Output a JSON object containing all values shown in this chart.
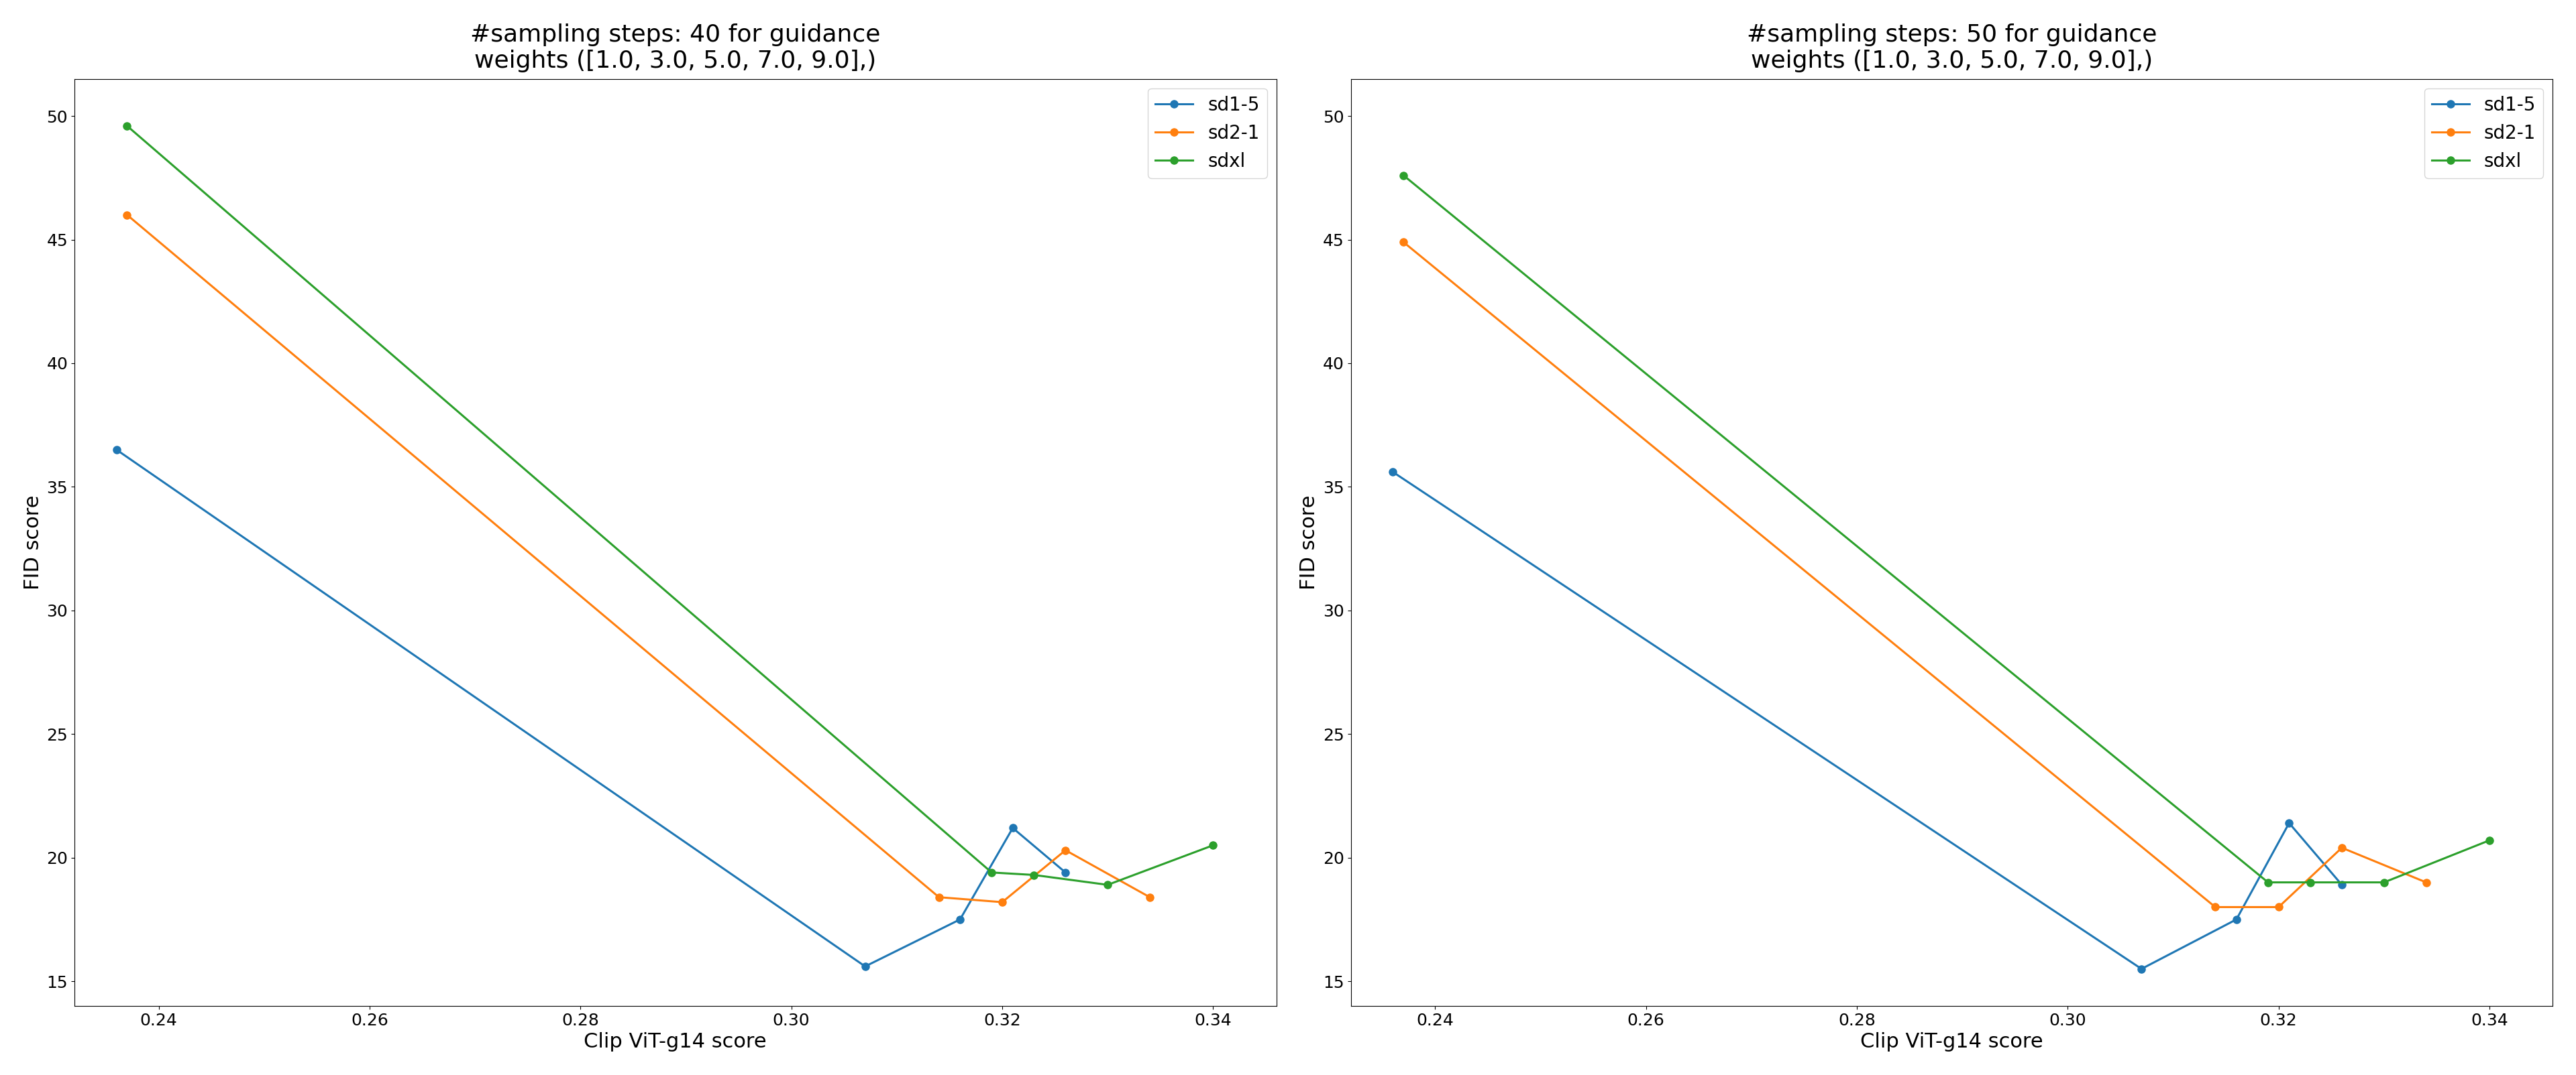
{
  "plots": [
    {
      "title": "#sampling steps: 40 for guidance\nweights ([1.0, 3.0, 5.0, 7.0, 9.0],)",
      "sd1_5": {
        "clip": [
          0.236,
          0.307,
          0.316,
          0.321,
          0.326
        ],
        "fid": [
          36.5,
          15.6,
          17.5,
          21.2,
          19.4
        ]
      },
      "sd2_1": {
        "clip": [
          0.237,
          0.314,
          0.32,
          0.326,
          0.334
        ],
        "fid": [
          46.0,
          18.4,
          18.2,
          20.3,
          18.4
        ]
      },
      "sdxl": {
        "clip": [
          0.237,
          0.319,
          0.323,
          0.33,
          0.34
        ],
        "fid": [
          49.6,
          19.4,
          19.3,
          18.9,
          20.5
        ]
      }
    },
    {
      "title": "#sampling steps: 50 for guidance\nweights ([1.0, 3.0, 5.0, 7.0, 9.0],)",
      "sd1_5": {
        "clip": [
          0.236,
          0.307,
          0.316,
          0.321,
          0.326
        ],
        "fid": [
          35.6,
          15.5,
          17.5,
          21.4,
          18.9
        ]
      },
      "sd2_1": {
        "clip": [
          0.237,
          0.314,
          0.32,
          0.326,
          0.334
        ],
        "fid": [
          44.9,
          18.0,
          18.0,
          20.4,
          19.0
        ]
      },
      "sdxl": {
        "clip": [
          0.237,
          0.319,
          0.323,
          0.33,
          0.34
        ],
        "fid": [
          47.6,
          19.0,
          19.0,
          19.0,
          20.7
        ]
      }
    }
  ],
  "colors": {
    "sd1_5": "#1f77b4",
    "sd2_1": "#ff7f0e",
    "sdxl": "#2ca02c"
  },
  "labels": {
    "sd1_5": "sd1-5",
    "sd2_1": "sd2-1",
    "sdxl": "sdxl"
  },
  "xlabel": "Clip ViT-g14 score",
  "ylabel": "FID score",
  "xlim": [
    0.232,
    0.346
  ],
  "ylim": [
    14.0,
    51.5
  ],
  "xticks": [
    0.24,
    0.26,
    0.28,
    0.3,
    0.32,
    0.34
  ],
  "yticks": [
    15,
    20,
    25,
    30,
    35,
    40,
    45,
    50
  ]
}
